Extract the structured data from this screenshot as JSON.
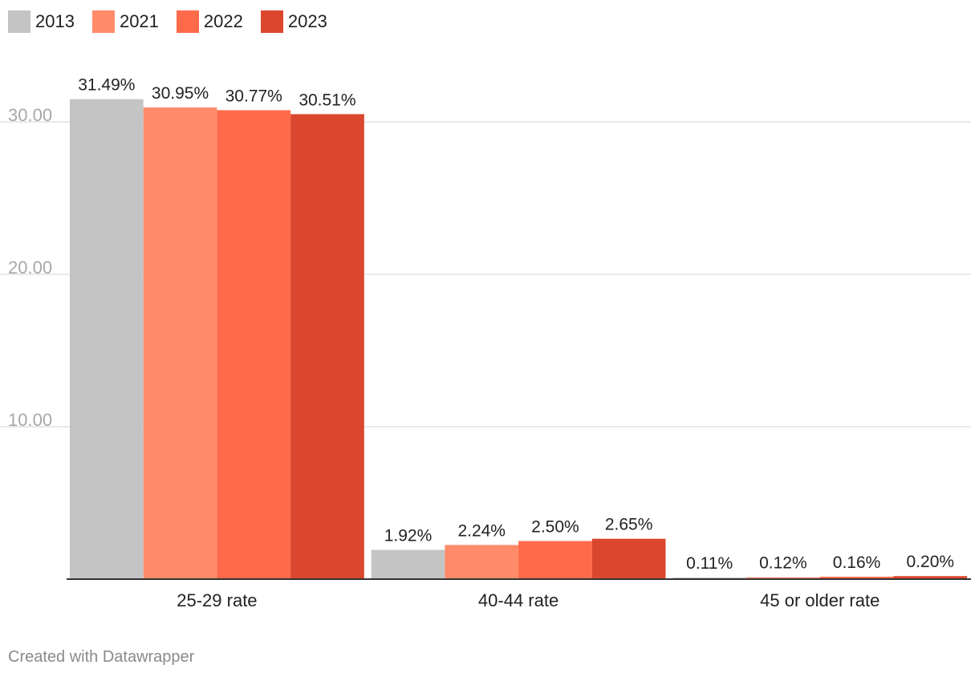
{
  "chart_data": {
    "type": "bar",
    "categories": [
      "25-29 rate",
      "40-44 rate",
      "45 or older rate"
    ],
    "series": [
      {
        "name": "2013",
        "values": [
          31.49,
          1.92,
          0.11
        ],
        "labels": [
          "31.49%",
          "1.92%",
          "0.11%"
        ],
        "color": "#c4c4c4"
      },
      {
        "name": "2021",
        "values": [
          30.95,
          2.24,
          0.12
        ],
        "labels": [
          "30.95%",
          "2.24%",
          "0.12%"
        ],
        "color": "#ff8b6a"
      },
      {
        "name": "2022",
        "values": [
          30.77,
          2.5,
          0.16
        ],
        "labels": [
          "30.77%",
          "2.50%",
          "0.16%"
        ],
        "color": "#ff6a4a"
      },
      {
        "name": "2023",
        "values": [
          30.51,
          2.65,
          0.2
        ],
        "labels": [
          "30.51%",
          "2.65%",
          "0.20%"
        ],
        "color": "#db472e"
      }
    ],
    "y_ticks": [
      "10.00",
      "20.00",
      "30.00"
    ],
    "ylim": [
      0,
      32
    ],
    "grid": true,
    "legend_position": "top-left"
  },
  "credit": "Created with Datawrapper"
}
